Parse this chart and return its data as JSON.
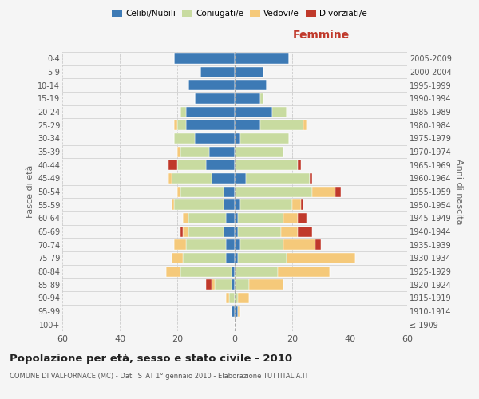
{
  "age_groups": [
    "100+",
    "95-99",
    "90-94",
    "85-89",
    "80-84",
    "75-79",
    "70-74",
    "65-69",
    "60-64",
    "55-59",
    "50-54",
    "45-49",
    "40-44",
    "35-39",
    "30-34",
    "25-29",
    "20-24",
    "15-19",
    "10-14",
    "5-9",
    "0-4"
  ],
  "birth_years": [
    "≤ 1909",
    "1910-1914",
    "1915-1919",
    "1920-1924",
    "1925-1929",
    "1930-1934",
    "1935-1939",
    "1940-1944",
    "1945-1949",
    "1950-1954",
    "1955-1959",
    "1960-1964",
    "1965-1969",
    "1970-1974",
    "1975-1979",
    "1980-1984",
    "1985-1989",
    "1990-1994",
    "1995-1999",
    "2000-2004",
    "2005-2009"
  ],
  "male_celibi": [
    0,
    1,
    0,
    1,
    1,
    3,
    3,
    4,
    3,
    4,
    4,
    8,
    10,
    9,
    14,
    17,
    17,
    14,
    16,
    12,
    21
  ],
  "male_coniugati": [
    0,
    0,
    2,
    6,
    18,
    15,
    14,
    12,
    13,
    17,
    15,
    14,
    10,
    10,
    7,
    3,
    2,
    0,
    0,
    0,
    0
  ],
  "male_vedovi": [
    0,
    0,
    1,
    1,
    5,
    4,
    4,
    2,
    2,
    1,
    1,
    1,
    0,
    1,
    0,
    1,
    0,
    0,
    0,
    0,
    0
  ],
  "male_divorziati": [
    0,
    0,
    0,
    2,
    0,
    0,
    0,
    1,
    0,
    0,
    0,
    0,
    3,
    0,
    0,
    0,
    0,
    0,
    0,
    0,
    0
  ],
  "female_celibi": [
    0,
    1,
    0,
    0,
    0,
    1,
    2,
    1,
    1,
    2,
    0,
    4,
    0,
    0,
    2,
    9,
    13,
    9,
    11,
    10,
    19
  ],
  "female_coniugati": [
    0,
    0,
    1,
    5,
    15,
    17,
    15,
    15,
    16,
    18,
    27,
    22,
    22,
    17,
    17,
    15,
    5,
    1,
    0,
    0,
    0
  ],
  "female_vedovi": [
    0,
    1,
    4,
    12,
    18,
    24,
    11,
    6,
    5,
    3,
    8,
    0,
    0,
    0,
    0,
    1,
    0,
    0,
    0,
    0,
    0
  ],
  "female_divorziati": [
    0,
    0,
    0,
    0,
    0,
    0,
    2,
    5,
    3,
    1,
    2,
    1,
    1,
    0,
    0,
    0,
    0,
    0,
    0,
    0,
    0
  ],
  "color_celibi": "#3d7ab5",
  "color_coniugati": "#c8dba0",
  "color_vedovi": "#f5c97a",
  "color_divorziati": "#c0392b",
  "xlim": 60,
  "title": "Popolazione per età, sesso e stato civile - 2010",
  "subtitle": "COMUNE DI VALFORNACE (MC) - Dati ISTAT 1° gennaio 2010 - Elaborazione TUTTITALIA.IT",
  "ylabel_left": "Fasce di età",
  "ylabel_right": "Anni di nascita",
  "xlabel_femmine": "Femmine",
  "bg_color": "#f5f5f5",
  "grid_color": "#cccccc"
}
